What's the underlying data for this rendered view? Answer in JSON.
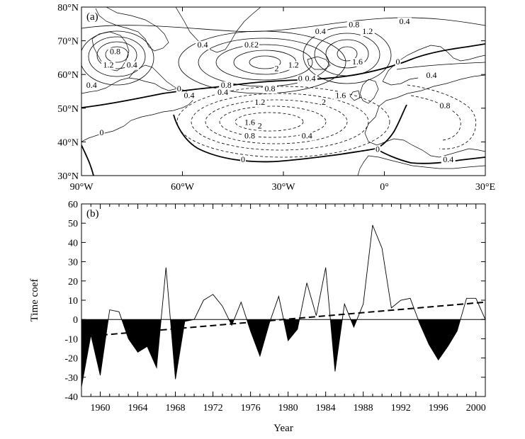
{
  "panel_a": {
    "label": "(a)",
    "lat_ticks": [
      "80°N",
      "70°N",
      "60°N",
      "50°N",
      "40°N",
      "30°N"
    ],
    "lon_ticks": [
      "90°W",
      "60°W",
      "30°W",
      "0°",
      "30°E"
    ],
    "contour_labels": [
      {
        "text": "0.4",
        "lon": -75,
        "lat": 62
      },
      {
        "text": "0.8",
        "lon": -80,
        "lat": 66
      },
      {
        "text": "1.2",
        "lon": -82,
        "lat": 62
      },
      {
        "text": "0.4",
        "lon": -54,
        "lat": 68
      },
      {
        "text": "0.4",
        "lon": -87,
        "lat": 56
      },
      {
        "text": "0.8",
        "lon": -40,
        "lat": 68
      },
      {
        "text": "2",
        "lon": -38,
        "lat": 68
      },
      {
        "text": "0.4",
        "lon": -19,
        "lat": 72
      },
      {
        "text": "0.8",
        "lon": -9,
        "lat": 74
      },
      {
        "text": "1.2",
        "lon": -5,
        "lat": 72
      },
      {
        "text": "0.4",
        "lon": 6,
        "lat": 75
      },
      {
        "text": "1.6",
        "lon": -8,
        "lat": 63
      },
      {
        "text": "2",
        "lon": -32,
        "lat": 61
      },
      {
        "text": "1.2",
        "lon": -27,
        "lat": 62
      },
      {
        "text": "0",
        "lon": 4,
        "lat": 63
      },
      {
        "text": "0.4",
        "lon": 14,
        "lat": 59
      },
      {
        "text": "0.8",
        "lon": -47,
        "lat": 56
      },
      {
        "text": "0.4",
        "lon": -48,
        "lat": 54
      },
      {
        "text": "0.4",
        "lon": -22,
        "lat": 58
      },
      {
        "text": "0",
        "lon": -25,
        "lat": 58
      },
      {
        "text": "0",
        "lon": -61,
        "lat": 55
      },
      {
        "text": "0.4",
        "lon": -58,
        "lat": 53
      },
      {
        "text": "0.8",
        "lon": -34,
        "lat": 55
      },
      {
        "text": "1.2",
        "lon": -37,
        "lat": 51
      },
      {
        "text": "1.6",
        "lon": -40,
        "lat": 45
      },
      {
        "text": "2",
        "lon": -37,
        "lat": 44
      },
      {
        "text": "0.8",
        "lon": -40,
        "lat": 41
      },
      {
        "text": "0.4",
        "lon": -23,
        "lat": 41
      },
      {
        "text": "2",
        "lon": -18,
        "lat": 51
      },
      {
        "text": "1.6",
        "lon": -13,
        "lat": 53
      },
      {
        "text": "0.8",
        "lon": 18,
        "lat": 50
      },
      {
        "text": "0.4",
        "lon": 19,
        "lat": 34
      },
      {
        "text": "0",
        "lon": -42,
        "lat": 34
      },
      {
        "text": "0",
        "lon": -2,
        "lat": 37
      },
      {
        "text": "0",
        "lon": -84,
        "lat": 42
      }
    ]
  },
  "chart_data": {
    "type": "area",
    "label": "(b)",
    "xlabel": "Year",
    "ylabel": "Time coef",
    "xlim": [
      1958,
      2001
    ],
    "ylim": [
      -40,
      60
    ],
    "x_ticks": [
      1960,
      1964,
      1968,
      1972,
      1976,
      1980,
      1984,
      1988,
      1992,
      1996,
      2000
    ],
    "y_ticks": [
      60,
      50,
      40,
      30,
      20,
      10,
      0,
      -10,
      -20,
      -30,
      -40
    ],
    "series": [
      {
        "x": [
          1958,
          1959,
          1960,
          1961,
          1962,
          1963,
          1964,
          1965,
          1966,
          1967,
          1968,
          1969,
          1970,
          1971,
          1972,
          1973,
          1974,
          1975,
          1976,
          1977,
          1978,
          1979,
          1980,
          1981,
          1982,
          1983,
          1984,
          1985,
          1986,
          1987,
          1988,
          1989,
          1990,
          1991,
          1992,
          1993,
          1994,
          1995,
          1996,
          1997,
          1998,
          1999,
          2000,
          2001
        ],
        "values": [
          -35,
          -8,
          -29,
          5,
          4,
          -10,
          -17,
          -14,
          -25,
          27,
          -31,
          -1,
          0,
          10,
          13,
          7,
          -3,
          9,
          -6,
          -19,
          -2,
          12,
          -11,
          -5,
          19,
          2,
          27,
          -27,
          8,
          -4,
          8,
          49,
          37,
          6,
          10,
          11,
          -2,
          -13,
          -21,
          -14,
          -6,
          11,
          11,
          0
        ]
      }
    ],
    "trend": {
      "x": [
        1958,
        2001
      ],
      "values": [
        -9,
        9
      ],
      "style": "dashed"
    }
  }
}
